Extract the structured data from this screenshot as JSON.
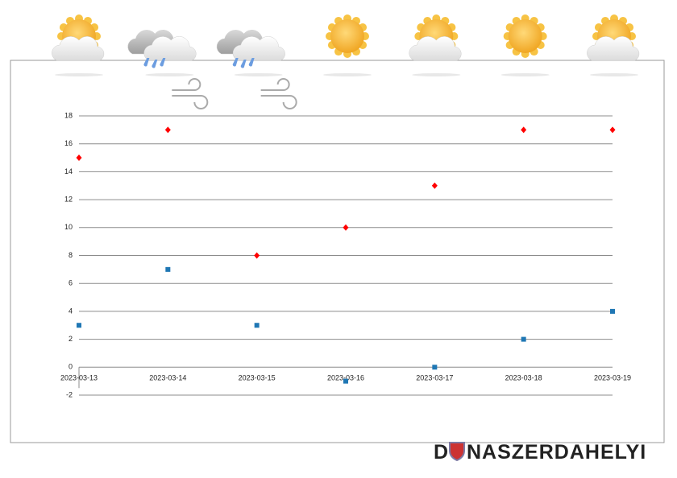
{
  "chart_data": {
    "type": "scatter",
    "categories": [
      "2023-03-13",
      "2023-03-14",
      "2023-03-15",
      "2023-03-16",
      "2023-03-17",
      "2023-03-18",
      "2023-03-19"
    ],
    "series": [
      {
        "color": "#ff0000",
        "marker": "diamond",
        "values": [
          15,
          17,
          8,
          10,
          13,
          17,
          17
        ]
      },
      {
        "color": "#1f77b4",
        "marker": "square",
        "values": [
          3,
          7,
          3,
          -1,
          0,
          2,
          4
        ]
      }
    ],
    "ylim": [
      -2,
      18
    ],
    "yticks": [
      -2,
      0,
      2,
      4,
      6,
      8,
      10,
      12,
      14,
      16,
      18
    ],
    "grid": true
  },
  "logo": {
    "left": "D",
    "right": "NASZERDAHELYI"
  }
}
